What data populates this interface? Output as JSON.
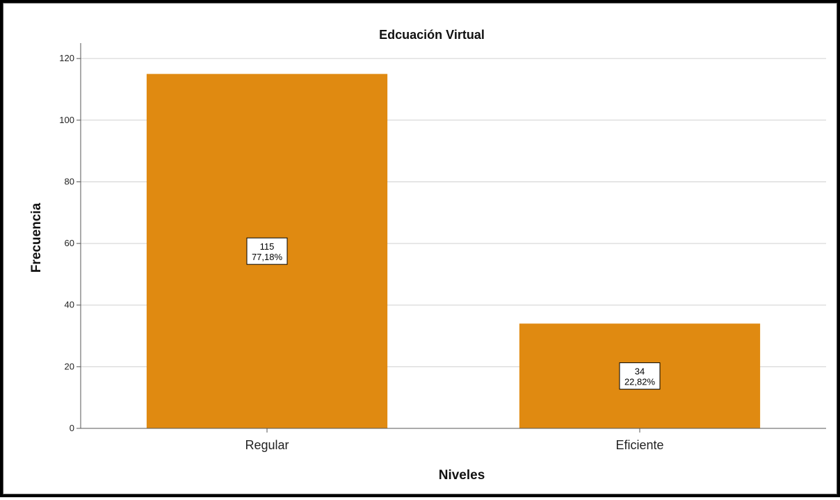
{
  "chart_data": {
    "type": "bar",
    "title": "Edcuación Virtual",
    "xlabel": "Niveles",
    "ylabel": "Frecuencia",
    "categories": [
      "Regular",
      "Eficiente"
    ],
    "values": [
      115,
      34
    ],
    "percent_labels": [
      "77,18%",
      "22,82%"
    ],
    "ylim": [
      0,
      125
    ],
    "yticks": [
      0,
      20,
      40,
      60,
      80,
      100,
      120
    ],
    "grid": true,
    "bar_color": "#E08A11"
  }
}
